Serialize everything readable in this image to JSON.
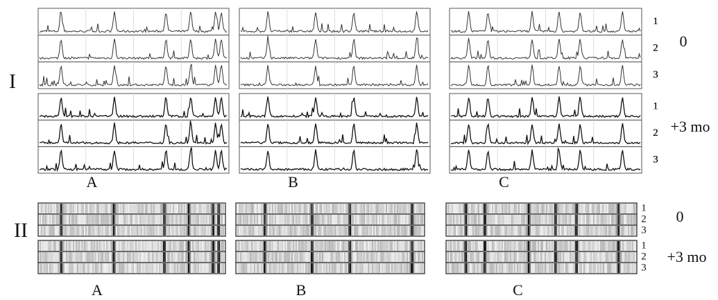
{
  "sections": [
    {
      "label": "I",
      "columns": [
        {
          "label": "A"
        },
        {
          "label": "B"
        },
        {
          "label": "C"
        }
      ]
    },
    {
      "label": "II",
      "columns": [
        {
          "label": "A"
        },
        {
          "label": "B"
        },
        {
          "label": "C"
        }
      ]
    }
  ],
  "timepoints": [
    "0",
    "+3 mo"
  ],
  "replicates": [
    "1",
    "2",
    "3"
  ]
}
